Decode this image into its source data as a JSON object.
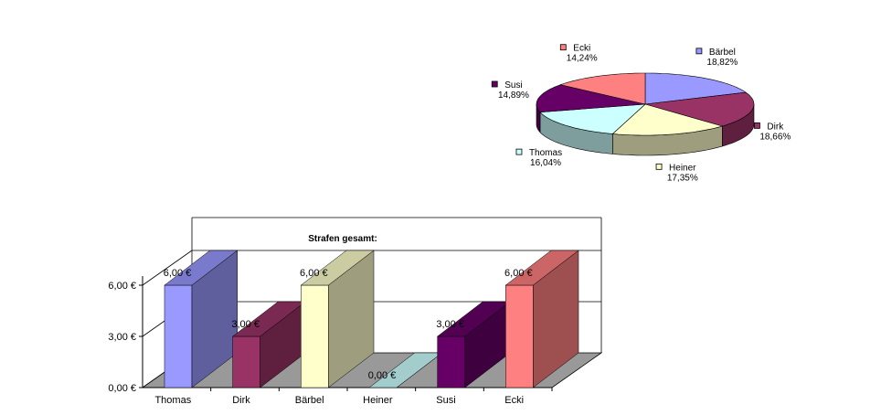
{
  "chart_data": [
    {
      "type": "pie",
      "title": "",
      "labels": [
        "Bärbel",
        "Dirk",
        "Heiner",
        "Thomas",
        "Susi",
        "Ecki"
      ],
      "percent_labels": [
        "18,82%",
        "18,66%",
        "17,35%",
        "16,04%",
        "14,89%",
        "14,24%"
      ],
      "values": [
        18.82,
        18.66,
        17.35,
        16.04,
        14.89,
        14.24
      ],
      "colors": [
        "#9999FF",
        "#993366",
        "#FFFFCC",
        "#CCFFFF",
        "#660066",
        "#FF8080"
      ],
      "style": "3d"
    },
    {
      "type": "bar",
      "style": "3d",
      "title": "Strafen gesamt:",
      "categories": [
        "Thomas",
        "Dirk",
        "Bärbel",
        "Heiner",
        "Susi",
        "Ecki"
      ],
      "values": [
        6,
        3,
        6,
        0,
        3,
        6
      ],
      "value_labels": [
        "6,00 €",
        "3,00 €",
        "6,00 €",
        "0,00 €",
        "3,00 €",
        "6,00 €"
      ],
      "colors": [
        "#9999FF",
        "#993366",
        "#FFFFCC",
        "#CCFFFF",
        "#660066",
        "#FF8080"
      ],
      "yticks": [
        "0,00 €",
        "3,00 €",
        "6,00 €"
      ],
      "ylim": [
        0,
        6
      ],
      "grid": true,
      "xlabel": "",
      "ylabel": ""
    }
  ]
}
